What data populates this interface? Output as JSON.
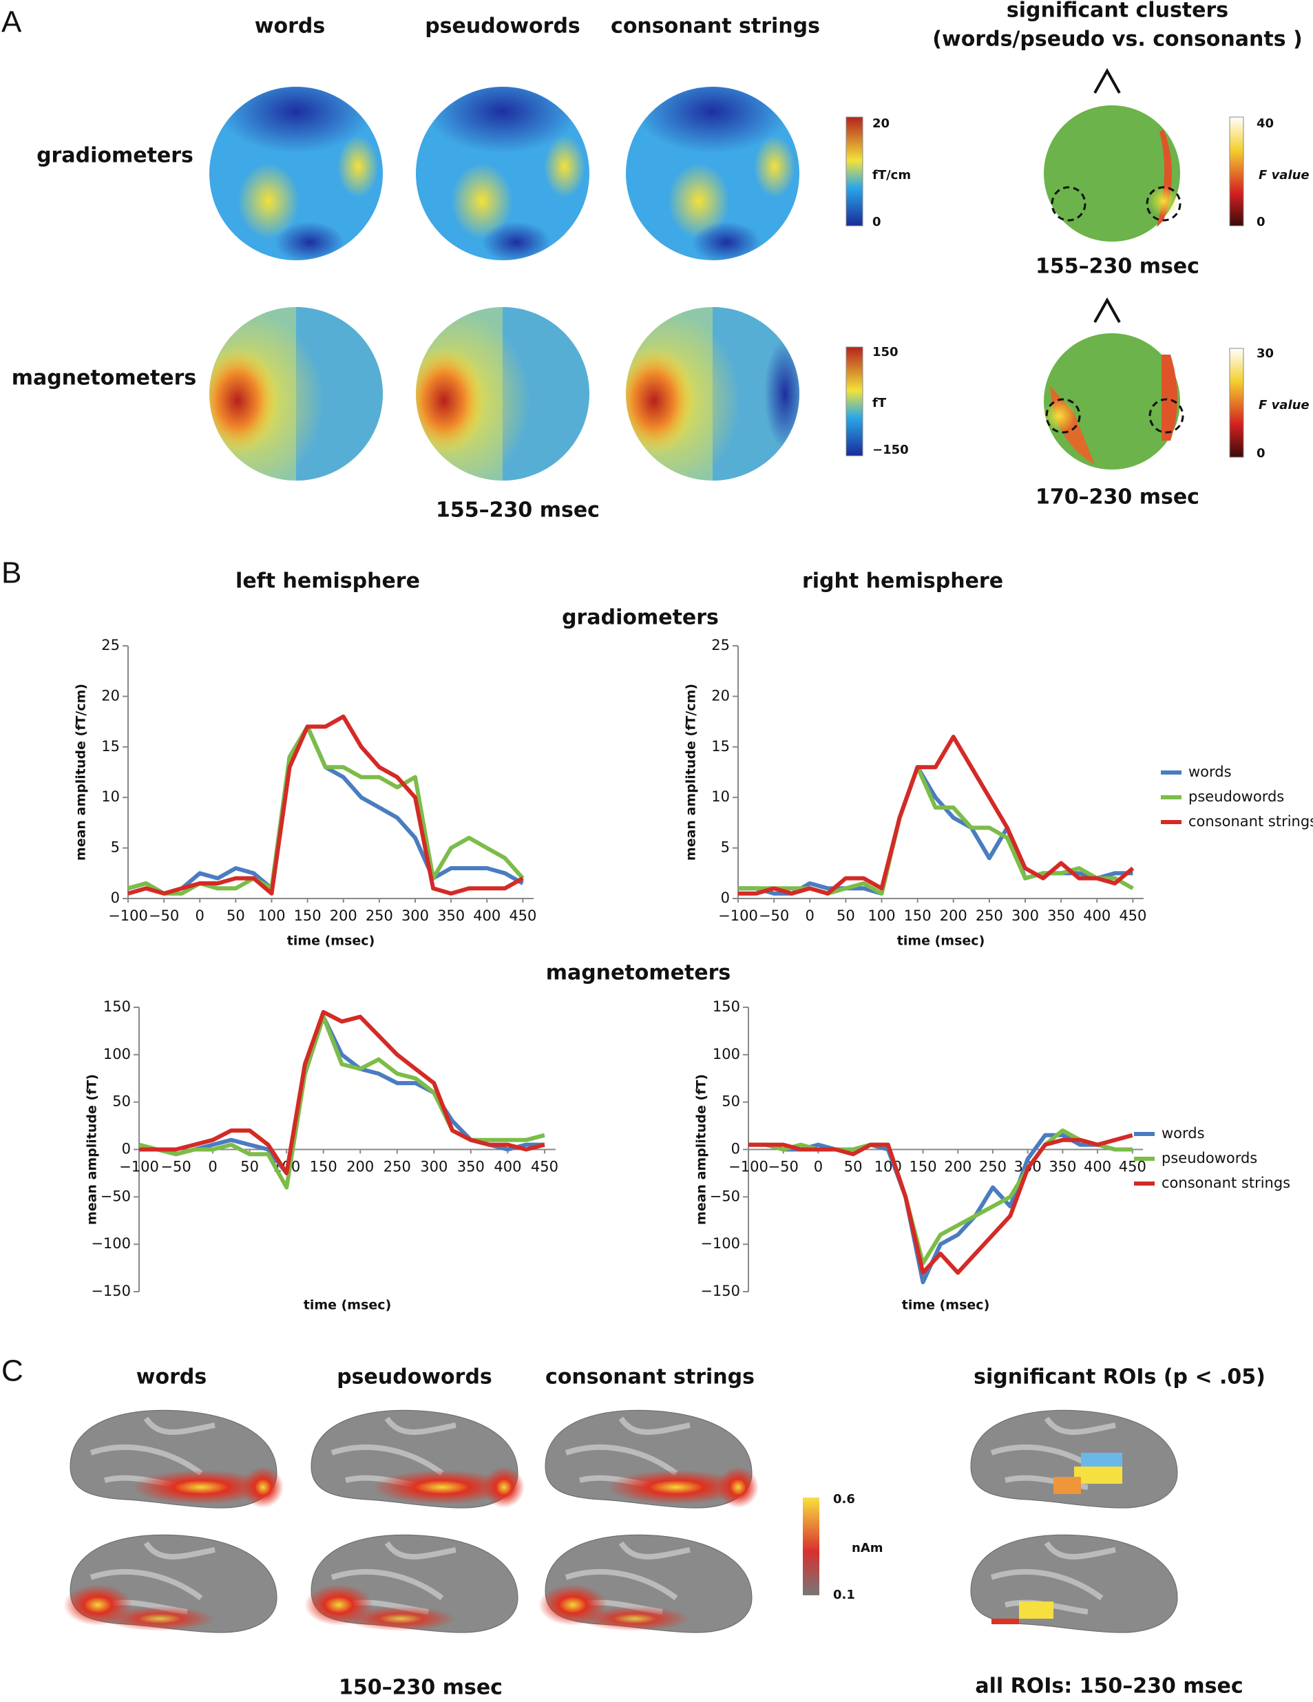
{
  "figure": {
    "panel_a": {
      "label": "A",
      "columns": [
        "words",
        "pseudowords",
        "consonant strings"
      ],
      "clusters_title": "significant clusters",
      "clusters_subtitle": "(words/pseudo vs. consonants )",
      "rows": [
        "gradiometers",
        "magnetometers"
      ],
      "grad_colorbar": [
        "20",
        "fT/cm",
        "0"
      ],
      "mag_colorbar": [
        "150",
        "fT",
        "−150"
      ],
      "grad_f_colorbar": [
        "40",
        "F value",
        "0"
      ],
      "mag_f_colorbar": [
        "30",
        "F value",
        "0"
      ],
      "grad_cluster_time": "155–230 msec",
      "mag_cluster_time": "170–230 msec",
      "time": "155–230 msec"
    },
    "panel_b": {
      "label": "B",
      "left": "left hemisphere",
      "right": "right hemisphere",
      "grad": "gradiometers",
      "mag": "magnetometers"
    },
    "panel_c": {
      "label": "C",
      "columns": [
        "words",
        "pseudowords",
        "consonant strings"
      ],
      "rois_title": "significant ROIs (p < .05)",
      "colorbar": [
        "0.6",
        "nAm",
        "0.1"
      ],
      "time": "150–230 msec",
      "rois_time": "all ROIs: 150–230 msec"
    }
  },
  "chart_data": [
    {
      "type": "line",
      "y_label": "mean amplitude (fT/cm)",
      "x_label": "time (msec)",
      "legend": false,
      "xlim": [
        -100,
        465
      ],
      "xticks": [
        {
          "value": -100,
          "label": "−100"
        },
        {
          "value": -50,
          "label": "−50"
        },
        0,
        50,
        100,
        150,
        200,
        250,
        300,
        350,
        400,
        450
      ],
      "ylim": [
        0,
        25
      ],
      "yticks": [
        0,
        5,
        10,
        15,
        20,
        25
      ],
      "x": [
        -100,
        -75,
        -50,
        -25,
        0,
        25,
        50,
        75,
        100,
        125,
        150,
        175,
        200,
        225,
        250,
        275,
        300,
        325,
        350,
        375,
        400,
        425,
        450
      ],
      "series": [
        {
          "name": "words",
          "color": "#4a7cc0",
          "values": [
            1,
            1.5,
            0.5,
            1,
            2.5,
            2,
            3,
            2.5,
            1,
            14,
            17,
            13,
            12,
            10,
            9,
            8,
            6,
            2,
            3,
            3,
            3,
            2.5,
            1.5
          ]
        },
        {
          "name": "pseudowords",
          "color": "#7cbc48",
          "values": [
            1,
            1.5,
            0.5,
            0.5,
            1.5,
            1,
            1,
            2,
            1,
            14,
            17,
            13,
            13,
            12,
            12,
            11,
            12,
            2,
            5,
            6,
            5,
            4,
            2
          ]
        },
        {
          "name": "consonant strings",
          "color": "#d42a26",
          "values": [
            0.5,
            1,
            0.5,
            1,
            1.5,
            1.5,
            2,
            2,
            0.5,
            13,
            17,
            17,
            18,
            15,
            13,
            12,
            10,
            1,
            0.5,
            1,
            1,
            1,
            2
          ]
        }
      ]
    },
    {
      "type": "line",
      "y_label": "mean amplitude (fT/cm)",
      "x_label": "time (msec)",
      "legend": true,
      "xlim": [
        -100,
        465
      ],
      "xticks": [
        {
          "value": -100,
          "label": "−100"
        },
        {
          "value": -50,
          "label": "−50"
        },
        0,
        50,
        100,
        150,
        200,
        250,
        300,
        350,
        400,
        450
      ],
      "ylim": [
        0,
        25
      ],
      "yticks": [
        0,
        5,
        10,
        15,
        20,
        25
      ],
      "x": [
        -100,
        -75,
        -50,
        -25,
        0,
        25,
        50,
        75,
        100,
        125,
        150,
        175,
        200,
        225,
        250,
        275,
        300,
        325,
        350,
        375,
        400,
        425,
        450
      ],
      "series": [
        {
          "name": "words",
          "color": "#4a7cc0",
          "values": [
            1,
            1,
            0.5,
            0.5,
            1.5,
            1,
            1,
            1,
            0.5,
            8,
            13,
            10,
            8,
            7,
            4,
            7,
            2,
            2.5,
            2.5,
            2.5,
            2,
            2.5,
            2.5
          ]
        },
        {
          "name": "pseudowords",
          "color": "#7cbc48",
          "values": [
            1,
            1,
            1,
            1,
            1,
            0.5,
            1,
            1.5,
            0.5,
            8,
            13,
            9,
            9,
            7,
            7,
            6,
            2,
            2.5,
            2.5,
            3,
            2,
            2,
            1
          ]
        },
        {
          "name": "consonant strings",
          "color": "#d42a26",
          "values": [
            0.5,
            0.5,
            1,
            0.5,
            1,
            0.5,
            2,
            2,
            1,
            8,
            13,
            13,
            16,
            13,
            10,
            7,
            3,
            2,
            3.5,
            2,
            2,
            1.5,
            3
          ]
        }
      ]
    },
    {
      "type": "line",
      "y_label": "mean amplitude (fT)",
      "x_label": "time (msec)",
      "legend": false,
      "xlim": [
        -100,
        465
      ],
      "xticks": [
        {
          "value": -100,
          "label": "−100"
        },
        {
          "value": -50,
          "label": "−50"
        },
        0,
        50,
        100,
        150,
        200,
        250,
        300,
        350,
        400,
        450
      ],
      "ylim": [
        -150,
        150
      ],
      "yticks": [
        {
          "value": -150,
          "label": "−150"
        },
        {
          "value": -100,
          "label": "−100"
        },
        {
          "value": -50,
          "label": "−50"
        },
        0,
        50,
        100,
        150
      ],
      "x": [
        -100,
        -75,
        -50,
        -25,
        0,
        25,
        50,
        75,
        100,
        125,
        150,
        175,
        200,
        225,
        250,
        275,
        300,
        325,
        350,
        375,
        400,
        425,
        450
      ],
      "series": [
        {
          "name": "words",
          "color": "#4a7cc0",
          "values": [
            0,
            0,
            -5,
            0,
            5,
            10,
            5,
            0,
            -25,
            80,
            140,
            100,
            85,
            80,
            70,
            70,
            60,
            30,
            10,
            5,
            0,
            5,
            5
          ]
        },
        {
          "name": "pseudowords",
          "color": "#7cbc48",
          "values": [
            5,
            0,
            -5,
            0,
            0,
            5,
            -5,
            -5,
            -40,
            80,
            140,
            90,
            85,
            95,
            80,
            75,
            60,
            20,
            10,
            10,
            10,
            10,
            15
          ]
        },
        {
          "name": "consonant strings",
          "color": "#d42a26",
          "values": [
            0,
            0,
            0,
            5,
            10,
            20,
            20,
            5,
            -25,
            90,
            145,
            135,
            140,
            120,
            100,
            85,
            70,
            20,
            10,
            5,
            5,
            0,
            5
          ]
        }
      ]
    },
    {
      "type": "line",
      "y_label": "mean amplitude (fT)",
      "x_label": "time (msec)",
      "legend": true,
      "xlim": [
        -100,
        465
      ],
      "xticks": [
        {
          "value": -100,
          "label": "−100"
        },
        {
          "value": -50,
          "label": "−50"
        },
        0,
        50,
        100,
        150,
        200,
        250,
        300,
        350,
        400,
        450
      ],
      "ylim": [
        -150,
        150
      ],
      "yticks": [
        {
          "value": -150,
          "label": "−150"
        },
        {
          "value": -100,
          "label": "−100"
        },
        {
          "value": -50,
          "label": "−50"
        },
        0,
        50,
        100,
        150
      ],
      "x": [
        -100,
        -75,
        -50,
        -25,
        0,
        25,
        50,
        75,
        100,
        125,
        150,
        175,
        200,
        225,
        250,
        275,
        300,
        325,
        350,
        375,
        400,
        425,
        450
      ],
      "series": [
        {
          "name": "words",
          "color": "#4a7cc0",
          "values": [
            5,
            5,
            0,
            0,
            5,
            0,
            0,
            5,
            0,
            -50,
            -140,
            -100,
            -90,
            -70,
            -40,
            -60,
            -10,
            15,
            15,
            5,
            5,
            0,
            0
          ]
        },
        {
          "name": "pseudowords",
          "color": "#7cbc48",
          "values": [
            5,
            5,
            0,
            5,
            0,
            0,
            0,
            5,
            5,
            -50,
            -120,
            -90,
            -80,
            -70,
            -60,
            -50,
            -20,
            5,
            20,
            10,
            5,
            0,
            0
          ]
        },
        {
          "name": "consonant strings",
          "color": "#d42a26",
          "values": [
            5,
            5,
            5,
            0,
            0,
            0,
            -5,
            5,
            5,
            -50,
            -130,
            -110,
            -130,
            -110,
            -90,
            -70,
            -20,
            5,
            10,
            10,
            5,
            10,
            15
          ]
        }
      ]
    }
  ]
}
